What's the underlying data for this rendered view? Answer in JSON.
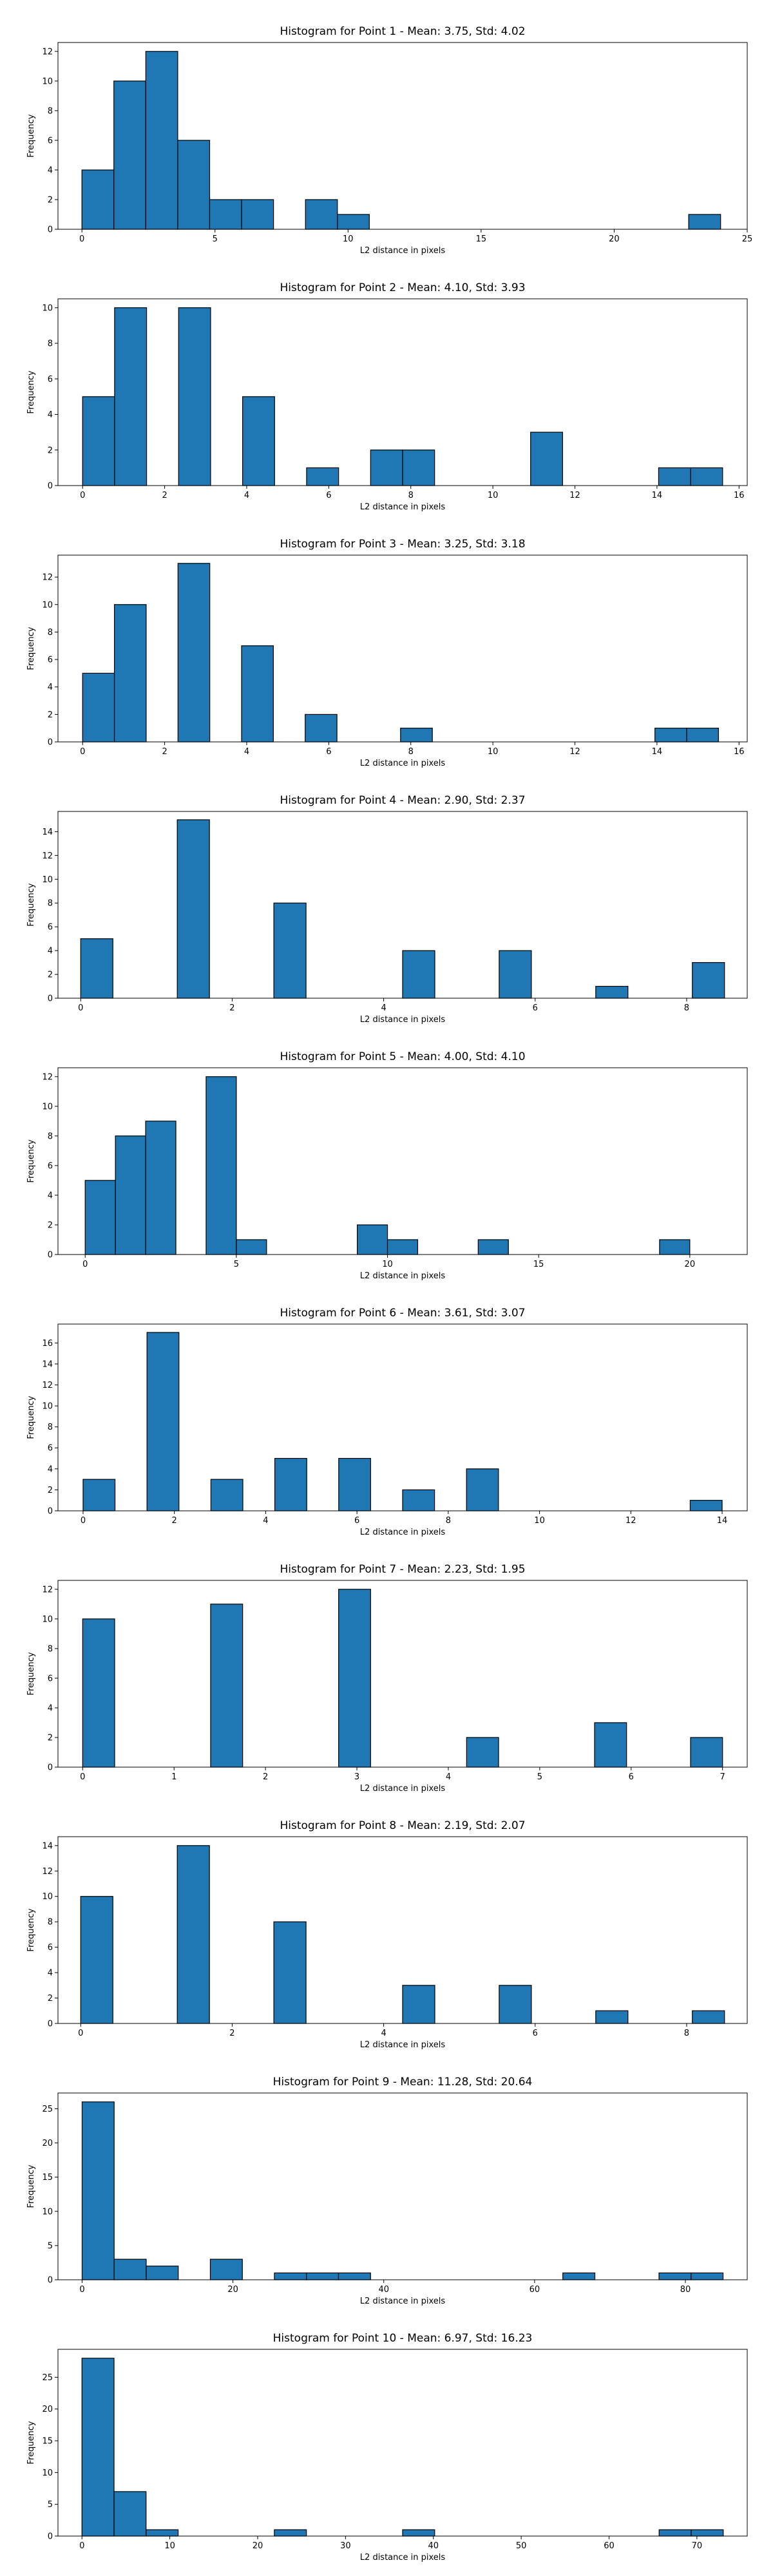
{
  "chart_data": [
    {
      "type": "bar",
      "title": "Histogram for Point 1 - Mean: 3.75, Std: 4.02",
      "xlabel": "L2 distance in pixels",
      "ylabel": "Frequency",
      "bin_start": 0.0,
      "bin_width": 1.2,
      "values": [
        4,
        10,
        12,
        6,
        2,
        2,
        0,
        2,
        1,
        0,
        0,
        0,
        0,
        0,
        0,
        0,
        0,
        0,
        0,
        1
      ],
      "xlim": [
        -0.9,
        25.0
      ],
      "ylim": [
        0,
        12.6
      ],
      "xticks": [
        0,
        5,
        10,
        15,
        20,
        25
      ],
      "yticks": [
        0,
        2,
        4,
        6,
        8,
        10,
        12
      ],
      "grid": false,
      "color": "#1f77b4"
    },
    {
      "type": "bar",
      "title": "Histogram for Point 2 - Mean: 4.10, Std: 3.93",
      "xlabel": "L2 distance in pixels",
      "ylabel": "Frequency",
      "bin_start": 0.0,
      "bin_width": 0.78,
      "values": [
        5,
        10,
        0,
        10,
        0,
        5,
        0,
        1,
        0,
        2,
        2,
        0,
        0,
        0,
        3,
        0,
        0,
        0,
        1,
        1
      ],
      "xlim": [
        -0.6,
        16.2
      ],
      "ylim": [
        0,
        10.5
      ],
      "xticks": [
        0,
        2,
        4,
        6,
        8,
        10,
        12,
        14,
        16
      ],
      "yticks": [
        0,
        2,
        4,
        6,
        8,
        10
      ],
      "grid": false,
      "color": "#1f77b4"
    },
    {
      "type": "bar",
      "title": "Histogram for Point 3 - Mean: 3.25, Std: 3.18",
      "xlabel": "L2 distance in pixels",
      "ylabel": "Frequency",
      "bin_start": 0.0,
      "bin_width": 0.775,
      "values": [
        5,
        10,
        0,
        13,
        0,
        7,
        0,
        2,
        0,
        0,
        1,
        0,
        0,
        0,
        0,
        0,
        0,
        0,
        1,
        1
      ],
      "xlim": [
        -0.6,
        16.2
      ],
      "ylim": [
        0,
        13.6
      ],
      "xticks": [
        0,
        2,
        4,
        6,
        8,
        10,
        12,
        14,
        16
      ],
      "yticks": [
        0,
        2,
        4,
        6,
        8,
        10,
        12
      ],
      "grid": false,
      "color": "#1f77b4"
    },
    {
      "type": "bar",
      "title": "Histogram for Point 4 - Mean: 2.90, Std: 2.37",
      "xlabel": "L2 distance in pixels",
      "ylabel": "Frequency",
      "bin_start": 0.0,
      "bin_width": 0.425,
      "values": [
        5,
        0,
        0,
        15,
        0,
        0,
        8,
        0,
        0,
        0,
        4,
        0,
        0,
        4,
        0,
        0,
        1,
        0,
        0,
        3
      ],
      "xlim": [
        -0.3,
        8.8
      ],
      "ylim": [
        0,
        15.7
      ],
      "xticks": [
        0,
        2,
        4,
        6,
        8
      ],
      "yticks": [
        0,
        2,
        4,
        6,
        8,
        10,
        12,
        14
      ],
      "grid": false,
      "color": "#1f77b4"
    },
    {
      "type": "bar",
      "title": "Histogram for Point 5 - Mean: 4.00, Std: 4.10",
      "xlabel": "L2 distance in pixels",
      "ylabel": "Frequency",
      "bin_start": 0.0,
      "bin_width": 1.0,
      "values": [
        5,
        8,
        9,
        0,
        12,
        1,
        0,
        0,
        0,
        2,
        1,
        0,
        0,
        1,
        0,
        0,
        0,
        0,
        0,
        1
      ],
      "xlim": [
        -0.9,
        21.9
      ],
      "ylim": [
        0,
        12.6
      ],
      "xticks": [
        0,
        5,
        10,
        15,
        20
      ],
      "yticks": [
        0,
        2,
        4,
        6,
        8,
        10,
        12
      ],
      "grid": false,
      "color": "#1f77b4"
    },
    {
      "type": "bar",
      "title": "Histogram for Point 6 - Mean: 3.61, Std: 3.07",
      "xlabel": "L2 distance in pixels",
      "ylabel": "Frequency",
      "bin_start": 0.0,
      "bin_width": 0.7,
      "values": [
        3,
        0,
        17,
        0,
        3,
        0,
        5,
        0,
        5,
        0,
        2,
        0,
        4,
        0,
        0,
        0,
        0,
        0,
        0,
        1
      ],
      "xlim": [
        -0.55,
        14.55
      ],
      "ylim": [
        0,
        17.8
      ],
      "xticks": [
        0,
        2,
        4,
        6,
        8,
        10,
        12,
        14
      ],
      "yticks": [
        0,
        2,
        4,
        6,
        8,
        10,
        12,
        14,
        16
      ],
      "grid": false,
      "color": "#1f77b4"
    },
    {
      "type": "bar",
      "title": "Histogram for Point 7 - Mean: 2.23, Std: 1.95",
      "xlabel": "L2 distance in pixels",
      "ylabel": "Frequency",
      "bin_start": 0.0,
      "bin_width": 0.35,
      "values": [
        10,
        0,
        0,
        0,
        11,
        0,
        0,
        0,
        12,
        0,
        0,
        0,
        2,
        0,
        0,
        0,
        3,
        0,
        0,
        2
      ],
      "xlim": [
        -0.27,
        7.27
      ],
      "ylim": [
        0,
        12.6
      ],
      "xticks": [
        0,
        1,
        2,
        3,
        4,
        5,
        6,
        7
      ],
      "yticks": [
        0,
        2,
        4,
        6,
        8,
        10,
        12
      ],
      "grid": false,
      "color": "#1f77b4"
    },
    {
      "type": "bar",
      "title": "Histogram for Point 8 - Mean: 2.19, Std: 2.07",
      "xlabel": "L2 distance in pixels",
      "ylabel": "Frequency",
      "bin_start": 0.0,
      "bin_width": 0.425,
      "values": [
        10,
        0,
        0,
        14,
        0,
        0,
        8,
        0,
        0,
        0,
        3,
        0,
        0,
        3,
        0,
        0,
        1,
        0,
        0,
        1
      ],
      "xlim": [
        -0.3,
        8.8
      ],
      "ylim": [
        0,
        14.7
      ],
      "xticks": [
        0,
        2,
        4,
        6,
        8
      ],
      "yticks": [
        0,
        2,
        4,
        6,
        8,
        10,
        12,
        14
      ],
      "grid": false,
      "color": "#1f77b4"
    },
    {
      "type": "bar",
      "title": "Histogram for Point 9 - Mean: 11.28, Std: 20.64",
      "xlabel": "L2 distance in pixels",
      "ylabel": "Frequency",
      "bin_start": 0.0,
      "bin_width": 4.25,
      "values": [
        26,
        3,
        2,
        0,
        3,
        0,
        1,
        1,
        1,
        0,
        0,
        0,
        0,
        0,
        0,
        1,
        0,
        0,
        1,
        1
      ],
      "xlim": [
        -3.2,
        88.2
      ],
      "ylim": [
        0,
        27.3
      ],
      "xticks": [
        0,
        20,
        40,
        60,
        80
      ],
      "yticks": [
        0,
        5,
        10,
        15,
        20,
        25
      ],
      "grid": false,
      "color": "#1f77b4"
    },
    {
      "type": "bar",
      "title": "Histogram for Point 10 - Mean: 6.97, Std: 16.23",
      "xlabel": "L2 distance in pixels",
      "ylabel": "Frequency",
      "bin_start": 0.0,
      "bin_width": 3.65,
      "values": [
        28,
        7,
        1,
        0,
        0,
        0,
        1,
        0,
        0,
        0,
        1,
        0,
        0,
        0,
        0,
        0,
        0,
        0,
        1,
        1
      ],
      "xlim": [
        -2.73,
        75.73
      ],
      "ylim": [
        0,
        29.4
      ],
      "xticks": [
        0,
        10,
        20,
        30,
        40,
        50,
        60,
        70
      ],
      "yticks": [
        0,
        5,
        10,
        15,
        20,
        25
      ],
      "grid": false,
      "color": "#1f77b4"
    }
  ]
}
